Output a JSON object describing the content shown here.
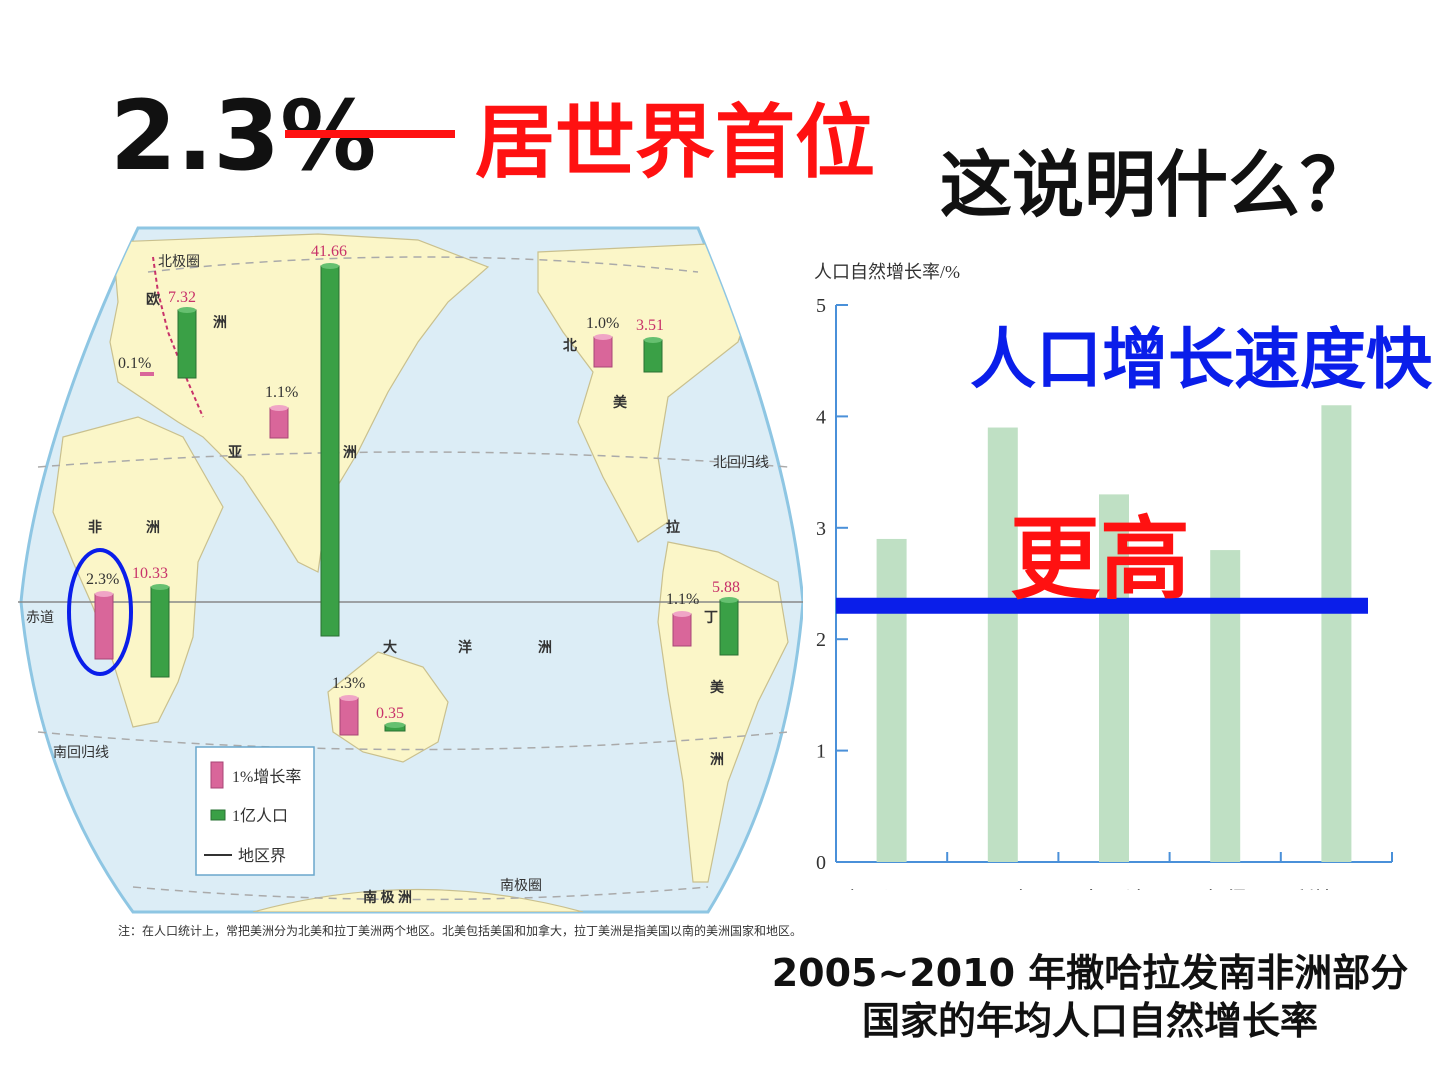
{
  "header": {
    "big_value": "2.3%",
    "rank_text": "居世界首位",
    "question": "这说明什么？"
  },
  "map": {
    "labels": {
      "arctic_circle": "北极圈",
      "antarctic_circle": "南极圈",
      "tropic_cancer": "北回归线",
      "tropic_capricorn": "南回归线",
      "equator": "赤道",
      "europe_1": "欧",
      "europe_2": "洲",
      "asia_1": "亚",
      "asia_2": "洲",
      "africa_1": "非",
      "africa_2": "洲",
      "oceania_1": "大",
      "oceania_2": "洋",
      "oceania_3": "洲",
      "na_1": "北",
      "na_2": "美",
      "la_1": "拉",
      "la_2": "丁",
      "la_3": "美",
      "la_4": "洲",
      "antarctica": "南 极 洲"
    },
    "values": {
      "europe_pop": "7.32",
      "europe_rate": "0.1%",
      "asia_pop": "41.66",
      "asia_rate": "1.1%",
      "africa_rate": "2.3%",
      "africa_pop": "10.33",
      "na_rate": "1.0%",
      "na_pop": "3.51",
      "la_rate": "1.1%",
      "la_pop": "5.88",
      "oceania_rate": "1.3%",
      "oceania_pop": "0.35"
    },
    "legend": {
      "rate": "1%增长率",
      "pop": "1亿人口",
      "border": "地区界"
    },
    "note": "注：在人口统计上，常把美洲分为北美和拉丁美洲两个地区。北美包括美国和加拿大，拉丁美洲是指美国以南的美洲国家和地区。",
    "colors": {
      "ocean": "#dcedf6",
      "land": "#fbf6c8",
      "rate_bar": "#d9669a",
      "pop_bar": "#3aa046",
      "highlight": "#0a1eea"
    }
  },
  "chart_data": {
    "type": "bar",
    "ylabel": "人口自然增长率/%",
    "categories": [
      "坦桑尼亚",
      "尼日尔",
      "乌干达",
      "乍得",
      "利比里亚"
    ],
    "values": [
      2.9,
      3.9,
      3.3,
      2.8,
      4.1
    ],
    "ylim": [
      0,
      5
    ],
    "yticks": [
      "0",
      "1",
      "2",
      "3",
      "4",
      "5"
    ],
    "reference_line": 2.3,
    "bar_color": "#bfe0c4",
    "axis_color": "#4a90d9",
    "line_color": "#0a1eea",
    "caption_line1": "2005~2010 年撒哈拉发南非洲部分",
    "caption_line2": "国家的年均人口自然增长率"
  },
  "overlays": {
    "blue_text": "人口增长速度快",
    "red_text": "更高"
  }
}
